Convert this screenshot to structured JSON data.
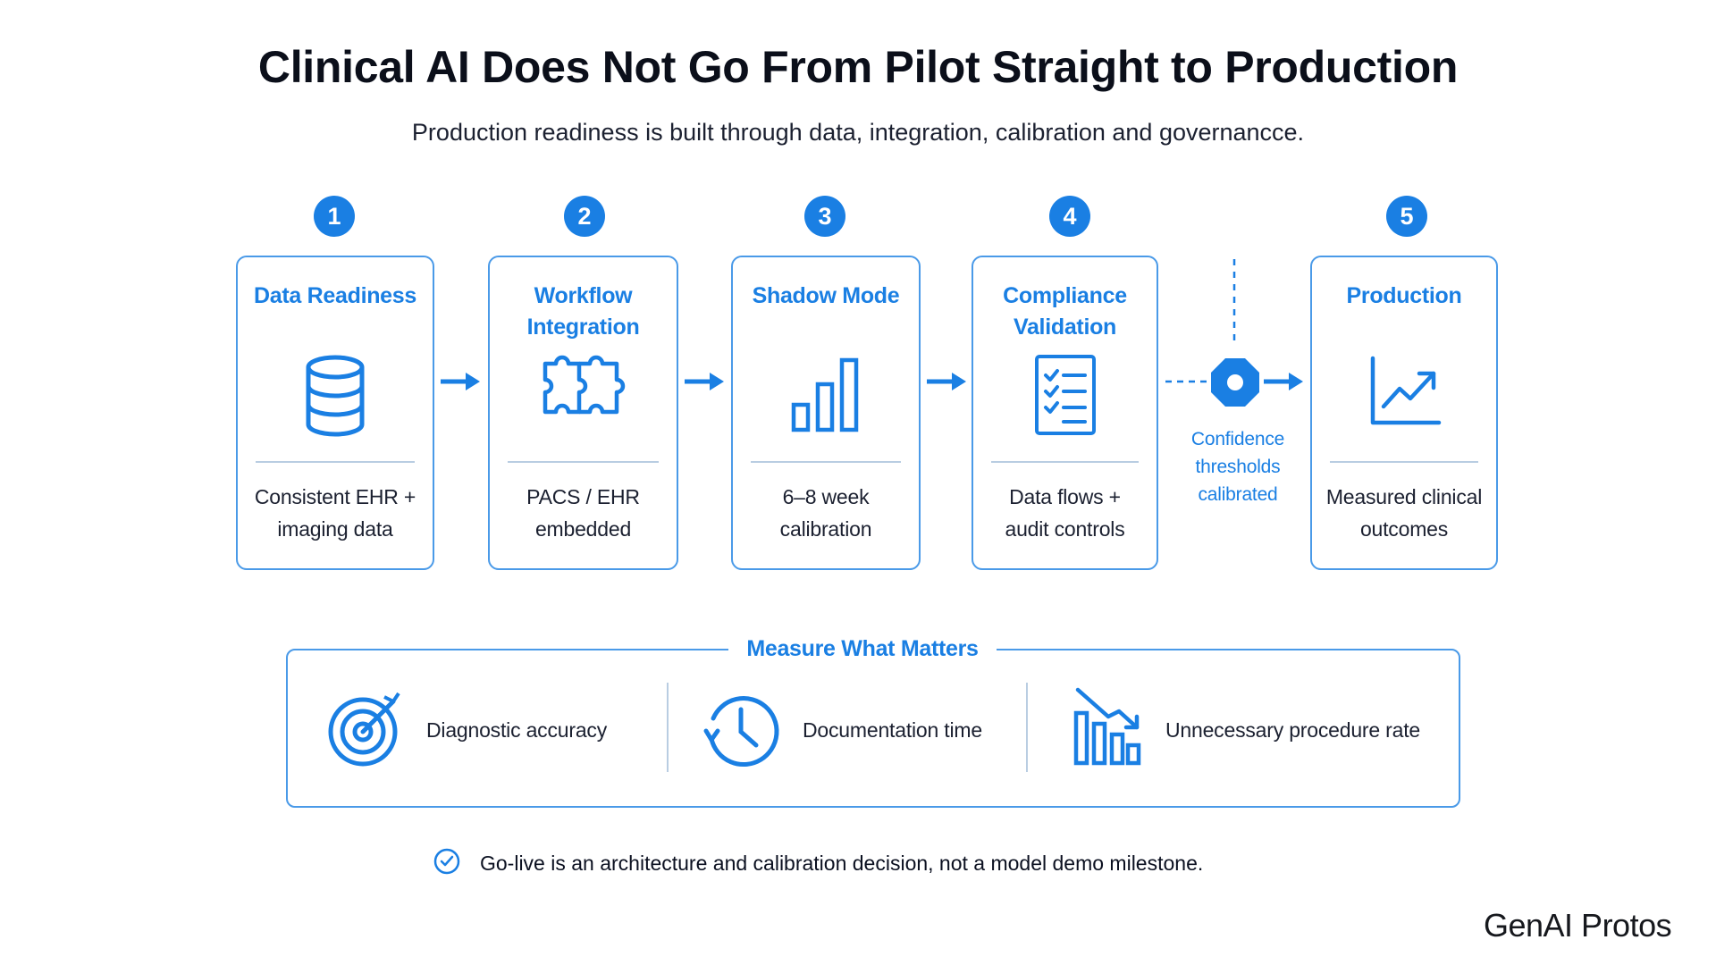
{
  "title": "Clinical AI Does Not Go From Pilot Straight to Production",
  "subtitle": "Production readiness is built through data, integration, calibration and governancce.",
  "accent_color": "#1a7fe3",
  "steps": [
    {
      "number": "1",
      "title_line1": "Data Readiness",
      "title_line2": "",
      "desc_line1": "Consistent EHR +",
      "desc_line2": "imaging data",
      "icon": "database-icon"
    },
    {
      "number": "2",
      "title_line1": "Workflow",
      "title_line2": "Integration",
      "desc_line1": "PACS / EHR",
      "desc_line2": "embedded",
      "icon": "puzzle-icon"
    },
    {
      "number": "3",
      "title_line1": "Shadow Mode",
      "title_line2": "",
      "desc_line1": "6–8 week",
      "desc_line2": "calibration",
      "icon": "bar-chart-icon"
    },
    {
      "number": "4",
      "title_line1": "Compliance",
      "title_line2": "Validation",
      "desc_line1": "Data flows +",
      "desc_line2": "audit controls",
      "icon": "checklist-icon"
    },
    {
      "number": "5",
      "title_line1": "Production",
      "title_line2": "",
      "desc_line1": "Measured clinical",
      "desc_line2": "outcomes",
      "icon": "trend-up-icon"
    }
  ],
  "confidence": {
    "line1": "Confidence",
    "line2": "thresholds",
    "line3": "calibrated",
    "icon": "octagon-gate-icon"
  },
  "measure": {
    "title": "Measure What Matters",
    "metrics": [
      {
        "label": "Diagnostic accuracy",
        "icon": "target-icon"
      },
      {
        "label": "Documentation time",
        "icon": "clock-icon"
      },
      {
        "label": "Unnecessary procedure rate",
        "icon": "declining-bars-icon"
      }
    ]
  },
  "footer_note": "Go-live is an architecture and calibration decision, not a model demo milestone.",
  "logo": "GenAI Protos"
}
